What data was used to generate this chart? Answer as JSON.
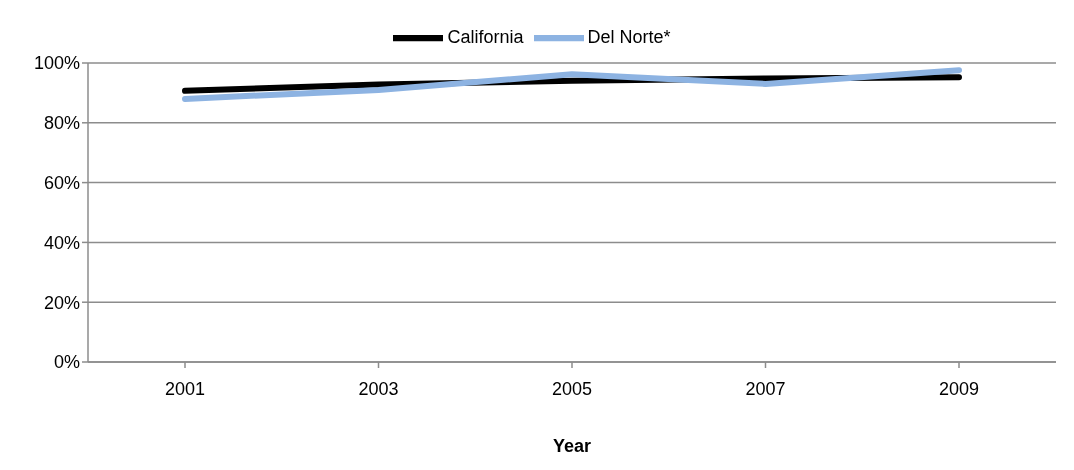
{
  "chart_data": {
    "type": "line",
    "xlabel": "Year",
    "categories": [
      "2001",
      "2003",
      "2005",
      "2007",
      "2009"
    ],
    "series": [
      {
        "name": "California",
        "color": "#000000",
        "values": [
          90.7,
          92.8,
          94.1,
          94.8,
          95.2
        ]
      },
      {
        "name": "Del Norte*",
        "color": "#8db3e2",
        "values": [
          88,
          91,
          96.2,
          93,
          97.6
        ]
      }
    ],
    "ylim": [
      0,
      100
    ],
    "yticks": [
      {
        "value": 0,
        "label": "0%"
      },
      {
        "value": 20,
        "label": "20%"
      },
      {
        "value": 40,
        "label": "40%"
      },
      {
        "value": 60,
        "label": "60%"
      },
      {
        "value": 80,
        "label": "80%"
      },
      {
        "value": 100,
        "label": "100%"
      }
    ],
    "grid": "y",
    "legend": "top",
    "marker": "none",
    "line_style": "solid"
  }
}
